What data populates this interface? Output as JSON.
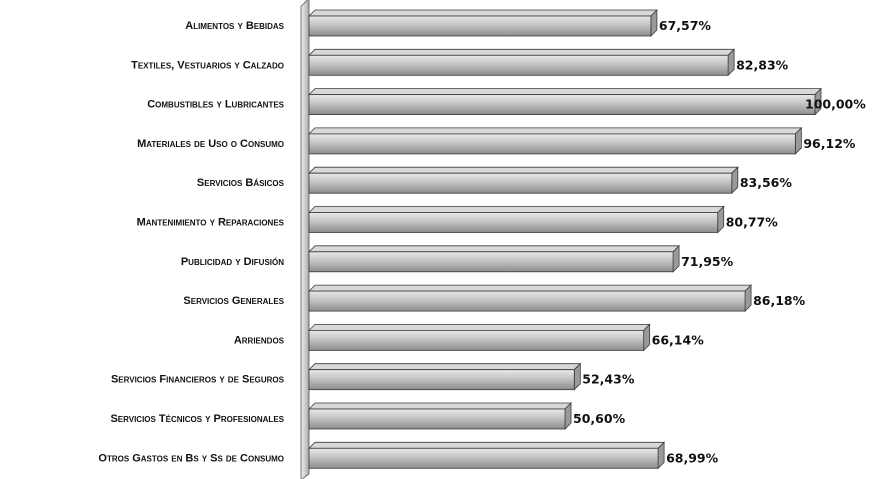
{
  "chart_data": {
    "type": "bar",
    "orientation": "horizontal",
    "categories": [
      "Alimentos y Bebidas",
      "Textiles, Vestuarios y Calzado",
      "Combustibles y Lubricantes",
      "Materiales de Uso o Consumo",
      "Servicios Básicos",
      "Mantenimiento y Reparaciones",
      "Publicidad y Difusión",
      "Servicios Generales",
      "Arriendos",
      "Servicios Financieros y de Seguros",
      "Servicios Técnicos y Profesionales",
      "Otros Gastos en Bs y Ss de Consumo"
    ],
    "values": [
      67.57,
      82.83,
      100.0,
      96.12,
      83.56,
      80.77,
      71.95,
      86.18,
      66.14,
      52.43,
      50.6,
      68.99
    ],
    "value_labels": [
      "67,57%",
      "82,83%",
      "100,00%",
      "96,12%",
      "83,56%",
      "80,77%",
      "71,95%",
      "86,18%",
      "66,14%",
      "52,43%",
      "50,60%",
      "68,99%"
    ],
    "xlim": [
      0,
      100
    ],
    "grid": false,
    "legend": "none",
    "colors": {
      "bar_light": "#e4e4e4",
      "bar_mid": "#bdbdbd",
      "bar_dark": "#8e8e8e",
      "bar_stroke": "#3a3a3a",
      "wall_light": "#f0f0f0",
      "wall_dark": "#a8a8a8"
    }
  }
}
